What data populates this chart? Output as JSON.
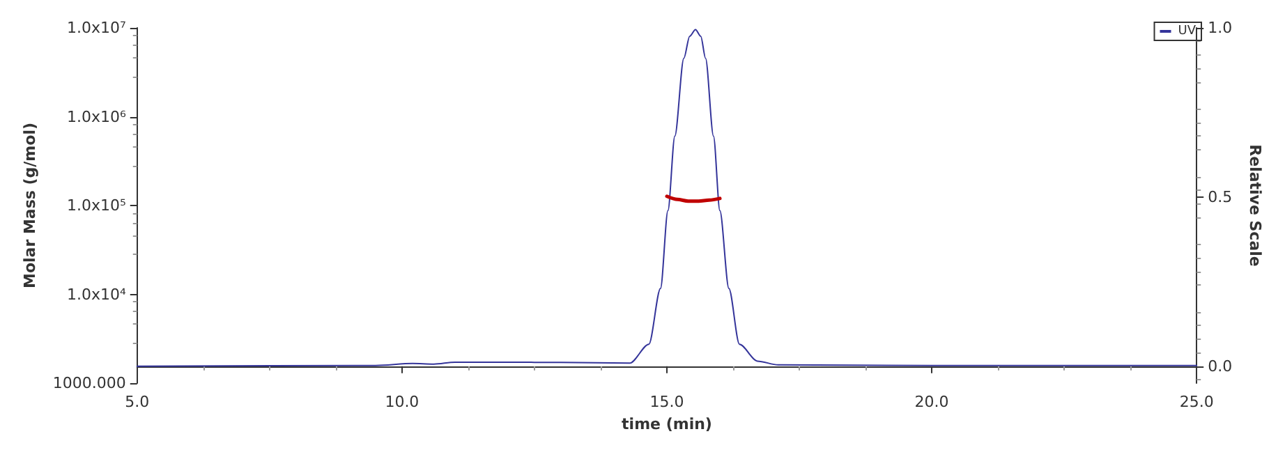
{
  "chart_data": {
    "type": "line",
    "xlabel": "time (min)",
    "ylabel": "Molar Mass (g/mol)",
    "y2label": "Relative Scale",
    "xlim": [
      5.0,
      25.0
    ],
    "xticks": [
      {
        "value": 5,
        "label": "5.0"
      },
      {
        "value": 10,
        "label": "10.0"
      },
      {
        "value": 15,
        "label": "15.0"
      },
      {
        "value": 20,
        "label": "20.0"
      },
      {
        "value": 25,
        "label": "25.0"
      }
    ],
    "ylim": [
      1000,
      10000000
    ],
    "yticks": [
      {
        "value": 1000,
        "label": "1000.000"
      },
      {
        "value": 10000,
        "label": "1.0x10⁴"
      },
      {
        "value": 100000,
        "label": "1.0x10⁵"
      },
      {
        "value": 1000000,
        "label": "1.0x10⁶"
      },
      {
        "value": 10000000,
        "label": "1.0x10⁷"
      }
    ],
    "y2lim": [
      -0.05,
      1.0
    ],
    "y2ticks": [
      {
        "value": 0,
        "label": "0.0"
      },
      {
        "value": 0.5,
        "label": "0.5"
      },
      {
        "value": 1,
        "label": "1.0"
      }
    ],
    "log": "y",
    "grid": false,
    "legend": "top right",
    "marker": "none",
    "line_style": "solid",
    "series": [
      {
        "name": "UV",
        "color": "#34349a",
        "axis": "y2",
        "x": [
          5,
          9.5,
          10.2,
          10.6,
          11,
          12,
          13,
          14.3,
          14.66,
          14.88,
          15.02,
          15.15,
          15.32,
          15.43,
          15.54,
          15.64,
          15.73,
          15.88,
          16.0,
          16.17,
          16.37,
          16.71,
          17.1,
          20,
          25
        ],
        "values": [
          0.0,
          0.002,
          0.008,
          0.006,
          0.012,
          0.012,
          0.011,
          0.009,
          0.065,
          0.23,
          0.46,
          0.68,
          0.91,
          0.975,
          0.995,
          0.975,
          0.91,
          0.68,
          0.46,
          0.23,
          0.065,
          0.015,
          0.004,
          0.002,
          0.002
        ]
      },
      {
        "color": "#c00000",
        "x": [
          15.0,
          15.2,
          15.4,
          15.6,
          15.8,
          16.0
        ],
        "values": [
          127000,
          117000,
          112000,
          112000,
          115000,
          120000
        ]
      }
    ]
  }
}
